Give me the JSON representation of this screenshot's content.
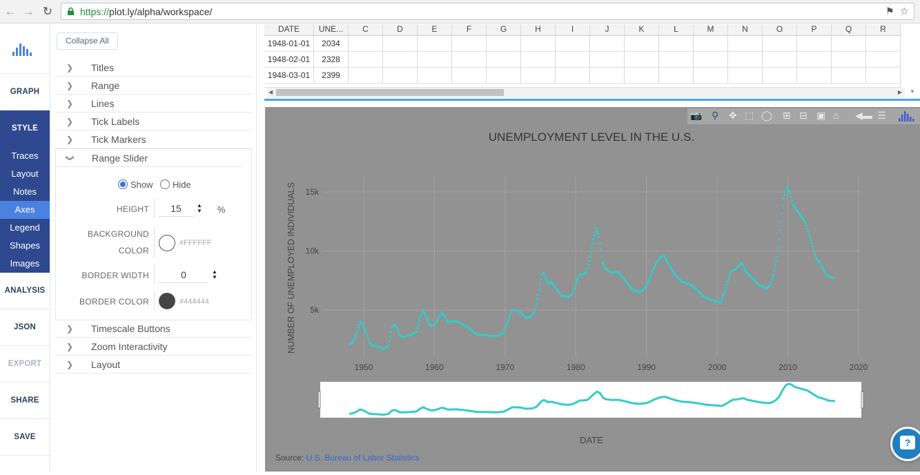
{
  "browser": {
    "url_scheme": "https://",
    "url_rest": "plot.ly/alpha/workspace/"
  },
  "rail": {
    "graph": "GRAPH",
    "style": "STYLE",
    "style_items": [
      "Traces",
      "Layout",
      "Notes",
      "Axes",
      "Legend",
      "Shapes",
      "Images"
    ],
    "analysis": "ANALYSIS",
    "json": "JSON",
    "export": "EXPORT",
    "share": "SHARE",
    "save": "SAVE"
  },
  "panel": {
    "collapse_all": "Collapse All",
    "sections_top": [
      "Titles",
      "Range",
      "Lines",
      "Tick Labels",
      "Tick Markers"
    ],
    "range_slider": {
      "title": "Range Slider",
      "show": "Show",
      "hide": "Hide",
      "height_label": "HEIGHT",
      "height_value": "15",
      "height_unit": "%",
      "bg_label_1": "BACKGROUND",
      "bg_label_2": "COLOR",
      "bg_hex": "#FFFFFF",
      "border_width_label": "BORDER WIDTH",
      "border_width_value": "0",
      "border_color_label": "BORDER COLOR",
      "border_hex": "#444444"
    },
    "sections_bottom": [
      "Timescale Buttons",
      "Zoom Interactivity",
      "Layout"
    ]
  },
  "grid": {
    "headers": [
      "DATE",
      "UNE...",
      "C",
      "D",
      "E",
      "F",
      "G",
      "H",
      "I",
      "J",
      "K",
      "L",
      "M",
      "N",
      "O",
      "P",
      "Q",
      "R"
    ],
    "rows": [
      [
        "1948-01-01",
        "2034"
      ],
      [
        "1948-02-01",
        "2328"
      ],
      [
        "1948-03-01",
        "2399"
      ]
    ]
  },
  "chart_data": {
    "type": "scatter",
    "title": "UNEMPLOYMENT LEVEL IN THE U.S.",
    "xlabel": "DATE",
    "ylabel": "NUMBER OF UNEMPLOYED INDIVIDUALS",
    "x_ticks": [
      "1950",
      "1960",
      "1970",
      "1980",
      "1990",
      "2000",
      "2010",
      "2020"
    ],
    "y_ticks": [
      "5k",
      "10k",
      "15k"
    ],
    "xlim": [
      1946,
      2020
    ],
    "ylim": [
      0,
      16500
    ],
    "marker_color": "#33ccc8",
    "range_slider": true,
    "source_prefix": "Source: ",
    "source_link": "U.S. Bureau of Labor Statistics",
    "series": [
      {
        "x": [
          1948.0,
          1948.5,
          1949.0,
          1949.5,
          1949.8,
          1950.3,
          1950.8,
          1951.3,
          1952.0,
          1952.8,
          1953.5,
          1954.0,
          1954.5,
          1955.0,
          1955.5,
          1956.0,
          1956.8,
          1957.5,
          1958.0,
          1958.4,
          1958.9,
          1959.5,
          1960.0,
          1960.5,
          1961.0,
          1961.4,
          1961.9,
          1962.5,
          1963.0,
          1964.0,
          1965.0,
          1966.0,
          1967.0,
          1968.0,
          1969.0,
          1969.8,
          1970.5,
          1971.0,
          1972.0,
          1973.0,
          1973.8,
          1974.3,
          1974.8,
          1975.2,
          1975.5,
          1976.0,
          1976.5,
          1977.0,
          1978.0,
          1979.0,
          1979.5,
          1980.0,
          1980.5,
          1981.0,
          1981.5,
          1982.0,
          1982.5,
          1982.9,
          1983.3,
          1983.8,
          1984.2,
          1985.0,
          1986.0,
          1987.0,
          1988.0,
          1989.0,
          1989.5,
          1990.0,
          1990.5,
          1991.0,
          1991.5,
          1992.0,
          1992.5,
          1993.0,
          1994.0,
          1995.0,
          1996.0,
          1997.0,
          1998.0,
          1999.0,
          2000.0,
          2000.5,
          2001.0,
          2001.5,
          2002.0,
          2002.5,
          2003.0,
          2003.5,
          2004.0,
          2005.0,
          2006.0,
          2007.0,
          2007.5,
          2008.0,
          2008.5,
          2009.0,
          2009.4,
          2009.8,
          2010.2,
          2010.7,
          2011.2,
          2011.8,
          2012.5,
          2013.0,
          2013.5,
          2014.0,
          2014.5,
          2015.0,
          2015.5,
          2016.0,
          2016.4
        ],
        "y": [
          2100,
          2300,
          3000,
          4000,
          3800,
          3100,
          2200,
          2000,
          1900,
          1700,
          2000,
          3500,
          3800,
          2900,
          2700,
          2800,
          2900,
          3200,
          4400,
          5000,
          4300,
          3600,
          3700,
          4200,
          4800,
          4500,
          4000,
          4000,
          4100,
          3800,
          3400,
          2900,
          2900,
          2800,
          2800,
          3100,
          4300,
          5000,
          4900,
          4300,
          4500,
          5100,
          6700,
          8000,
          8100,
          7200,
          7400,
          7000,
          6200,
          6100,
          6400,
          7200,
          8000,
          8000,
          8200,
          9500,
          11000,
          11900,
          11200,
          9000,
          8500,
          8200,
          8200,
          7500,
          6700,
          6500,
          6700,
          7000,
          7700,
          8500,
          9100,
          9500,
          9600,
          9000,
          8000,
          7400,
          7200,
          6800,
          6200,
          5900,
          5700,
          5600,
          6400,
          7400,
          8300,
          8400,
          8700,
          9000,
          8300,
          7700,
          7100,
          6800,
          7100,
          8000,
          9500,
          12500,
          14500,
          15300,
          15100,
          14000,
          13500,
          13000,
          12400,
          11400,
          10400,
          9400,
          9000,
          8500,
          7900,
          7800,
          7700
        ]
      }
    ]
  }
}
